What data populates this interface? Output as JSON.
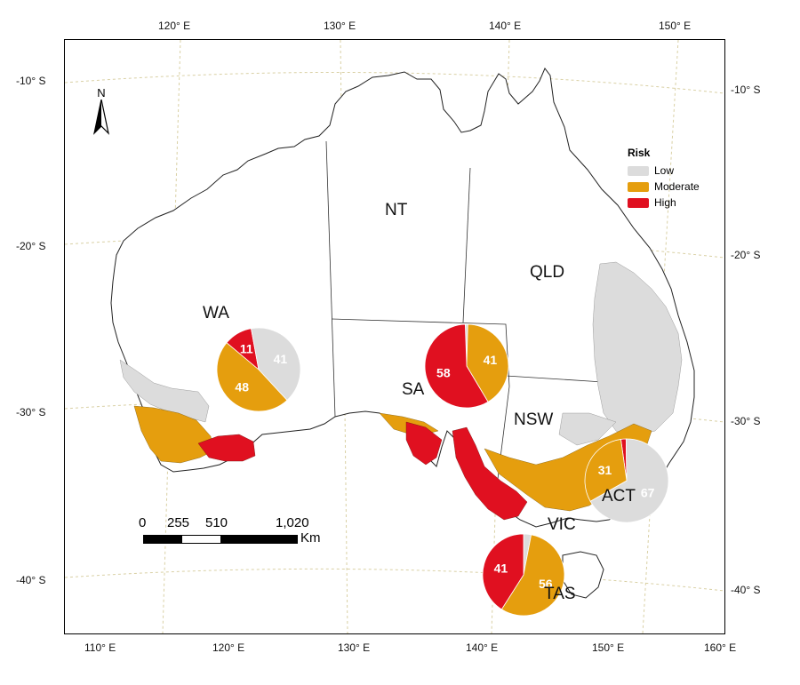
{
  "longitude_labels": [
    "110° E",
    "120° E",
    "130° E",
    "140° E",
    "150° E",
    "160° E"
  ],
  "longitude_top_labels": [
    "120° E",
    "130° E",
    "140° E",
    "150° E"
  ],
  "latitude_left_labels": [
    "-10° S",
    "-20° S",
    "-30° S",
    "-40° S"
  ],
  "latitude_right_labels": [
    "-10° S",
    "-20° S",
    "-30° S",
    "-40° S"
  ],
  "states": {
    "wa": "WA",
    "nt": "NT",
    "qld": "QLD",
    "sa": "SA",
    "nsw": "NSW",
    "vic": "VIC",
    "tas": "TAS",
    "act": "ACT"
  },
  "legend": {
    "title": "Risk",
    "items": [
      {
        "label": "Low",
        "color": "#dcdcdc"
      },
      {
        "label": "Moderate",
        "color": "#e59e0e"
      },
      {
        "label": "High",
        "color": "#e01020"
      }
    ]
  },
  "north_label": "N",
  "scale_bar": {
    "labels": [
      "0",
      "255",
      "510",
      "1,020"
    ],
    "unit": "Km"
  },
  "pies": [
    {
      "state": "WA",
      "slices": [
        {
          "risk": "High",
          "value": 11
        },
        {
          "risk": "Low",
          "value": 41
        },
        {
          "risk": "Moderate",
          "value": 48
        }
      ]
    },
    {
      "state": "SA",
      "slices": [
        {
          "risk": "Low",
          "value": 1
        },
        {
          "risk": "Moderate",
          "value": 41
        },
        {
          "risk": "High",
          "value": 58
        }
      ]
    },
    {
      "state": "NSW/ACT",
      "slices": [
        {
          "risk": "High",
          "value": 2
        },
        {
          "risk": "Low",
          "value": 67
        },
        {
          "risk": "Moderate",
          "value": 31
        }
      ]
    },
    {
      "state": "VIC",
      "slices": [
        {
          "risk": "Low",
          "value": 3
        },
        {
          "risk": "Moderate",
          "value": 56
        },
        {
          "risk": "High",
          "value": 41
        }
      ]
    }
  ]
}
